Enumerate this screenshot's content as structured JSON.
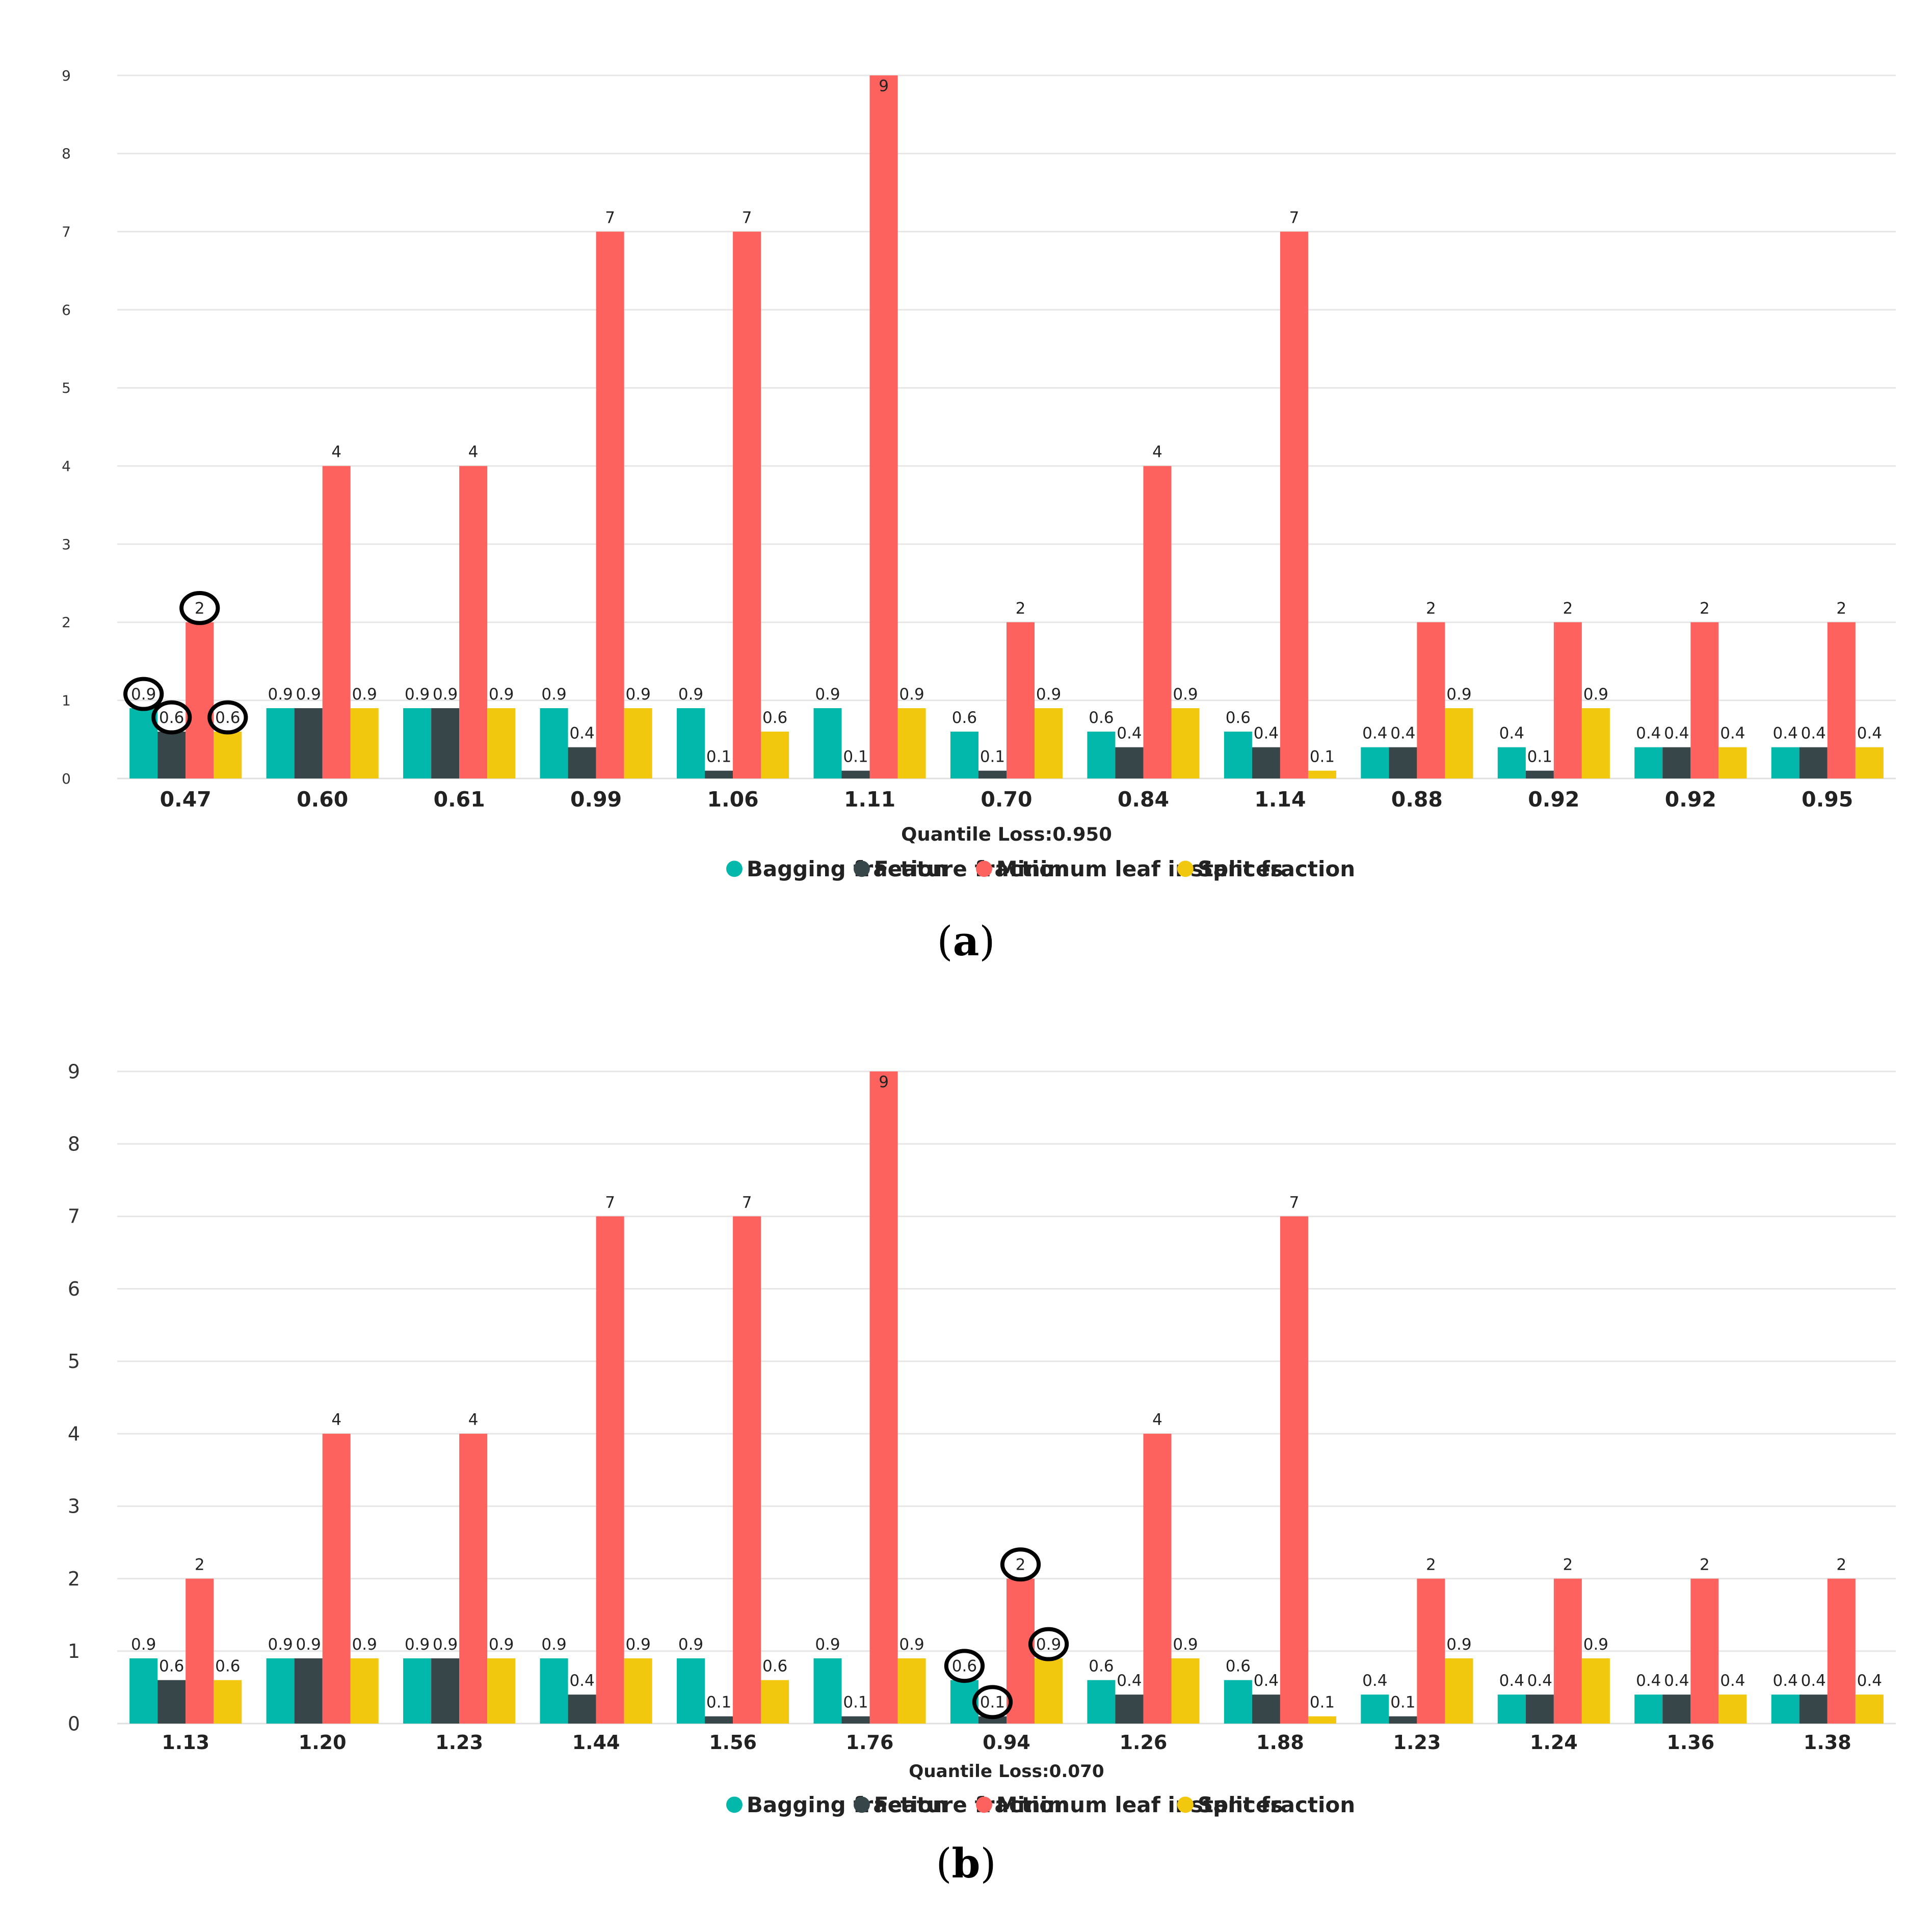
{
  "figure_captions": {
    "a": "a",
    "b": "b"
  },
  "chart_data": [
    {
      "type": "bar",
      "panel": "a",
      "xlabel": "Quantile Loss:0.950",
      "ylabel": "",
      "ylim": [
        0,
        9
      ],
      "yticks": [
        "0",
        "1",
        "2",
        "3",
        "4",
        "5",
        "6",
        "7",
        "8",
        "9"
      ],
      "grid": true,
      "legend_position": "bottom",
      "categories": [
        "0.47",
        "0.60",
        "0.61",
        "0.99",
        "1.06",
        "1.11",
        "0.70",
        "0.84",
        "1.14",
        "0.88",
        "0.92",
        "0.92",
        "0.95"
      ],
      "series": [
        {
          "name": "Bagging fraction",
          "color": "#01B8AA",
          "values": [
            0.9,
            0.9,
            0.9,
            0.9,
            0.9,
            0.9,
            0.6,
            0.6,
            0.6,
            0.4,
            0.4,
            0.4,
            0.4
          ],
          "labels": [
            "0.9",
            "0.9",
            "0.9",
            "0.9",
            "0.9",
            "0.9",
            "0.6",
            "0.6",
            "0.6",
            "0.4",
            "0.4",
            "0.4",
            "0.4"
          ]
        },
        {
          "name": "Feature fraction",
          "color": "#374649",
          "values": [
            0.6,
            0.9,
            0.9,
            0.4,
            0.1,
            0.1,
            0.1,
            0.4,
            0.4,
            0.4,
            0.1,
            0.4,
            0.4
          ],
          "labels": [
            "0.6",
            "0.9",
            "0.9",
            "0.4",
            "0.1",
            "0.1",
            "0.1",
            "0.4",
            "0.4",
            "0.4",
            "0.1",
            "0.4",
            "0.4"
          ]
        },
        {
          "name": "Minimum leaf instances",
          "color": "#FD625E",
          "values": [
            2,
            4,
            4,
            7,
            7,
            9,
            2,
            4,
            7,
            2,
            2,
            2,
            2
          ],
          "labels": [
            "2",
            "4",
            "4",
            "7",
            "7",
            "9",
            "2",
            "4",
            "7",
            "2",
            "2",
            "2",
            "2"
          ]
        },
        {
          "name": "Split fraction",
          "color": "#F2C80F",
          "values": [
            0.6,
            0.9,
            0.9,
            0.9,
            0.6,
            0.9,
            0.9,
            0.9,
            0.1,
            0.9,
            0.9,
            0.4,
            0.4
          ],
          "labels": [
            "0.6",
            "0.9",
            "0.9",
            "0.9",
            "0.6",
            "0.9",
            "0.9",
            "0.9",
            "0.1",
            "0.9",
            "0.9",
            "0.4",
            "0.4"
          ]
        }
      ],
      "annotations": [
        {
          "type": "circle",
          "category_index": 0,
          "series_index": 0,
          "text": "0.9"
        },
        {
          "type": "circle",
          "category_index": 0,
          "series_index": 1,
          "text": "0.6"
        },
        {
          "type": "circle",
          "category_index": 0,
          "series_index": 2,
          "text": "2"
        },
        {
          "type": "circle",
          "category_index": 0,
          "series_index": 3,
          "text": "0.6"
        }
      ]
    },
    {
      "type": "bar",
      "panel": "b",
      "xlabel": "Quantile Loss:0.070",
      "ylabel": "",
      "ylim": [
        0,
        9
      ],
      "yticks": [
        "0",
        "1",
        "2",
        "3",
        "4",
        "5",
        "6",
        "7",
        "8",
        "9"
      ],
      "grid": true,
      "legend_position": "bottom",
      "categories": [
        "1.13",
        "1.20",
        "1.23",
        "1.44",
        "1.56",
        "1.76",
        "0.94",
        "1.26",
        "1.88",
        "1.23",
        "1.24",
        "1.36",
        "1.38"
      ],
      "series": [
        {
          "name": "Bagging fraction",
          "color": "#01B8AA",
          "values": [
            0.9,
            0.9,
            0.9,
            0.9,
            0.9,
            0.9,
            0.6,
            0.6,
            0.6,
            0.4,
            0.4,
            0.4,
            0.4
          ],
          "labels": [
            "0.9",
            "0.9",
            "0.9",
            "0.9",
            "0.9",
            "0.9",
            "0.6",
            "0.6",
            "0.6",
            "0.4",
            "0.4",
            "0.4",
            "0.4"
          ]
        },
        {
          "name": "Feature fraction",
          "color": "#374649",
          "values": [
            0.6,
            0.9,
            0.9,
            0.4,
            0.1,
            0.1,
            0.1,
            0.4,
            0.4,
            0.1,
            0.4,
            0.4,
            0.4
          ],
          "labels": [
            "0.6",
            "0.9",
            "0.9",
            "0.4",
            "0.1",
            "0.1",
            "0.1",
            "0.4",
            "0.4",
            "0.1",
            "0.4",
            "0.4",
            "0.4"
          ]
        },
        {
          "name": "Minimum leaf instances",
          "color": "#FD625E",
          "values": [
            2,
            4,
            4,
            7,
            7,
            9,
            2,
            4,
            7,
            2,
            2,
            2,
            2
          ],
          "labels": [
            "2",
            "4",
            "4",
            "7",
            "7",
            "9",
            "2",
            "4",
            "7",
            "2",
            "2",
            "2",
            "2"
          ]
        },
        {
          "name": "Split fraction",
          "color": "#F2C80F",
          "values": [
            0.6,
            0.9,
            0.9,
            0.9,
            0.6,
            0.9,
            0.9,
            0.9,
            0.1,
            0.9,
            0.9,
            0.4,
            0.4
          ],
          "labels": [
            "0.6",
            "0.9",
            "0.9",
            "0.9",
            "0.6",
            "0.9",
            "0.9",
            "0.9",
            "0.1",
            "0.9",
            "0.9",
            "0.4",
            "0.4"
          ]
        }
      ],
      "annotations": [
        {
          "type": "circle",
          "category_index": 6,
          "series_index": 0,
          "text": "0.6"
        },
        {
          "type": "circle",
          "category_index": 6,
          "series_index": 1,
          "text": "0.1"
        },
        {
          "type": "circle",
          "category_index": 6,
          "series_index": 2,
          "text": "2"
        },
        {
          "type": "circle",
          "category_index": 6,
          "series_index": 3,
          "text": "0.9"
        }
      ]
    }
  ]
}
